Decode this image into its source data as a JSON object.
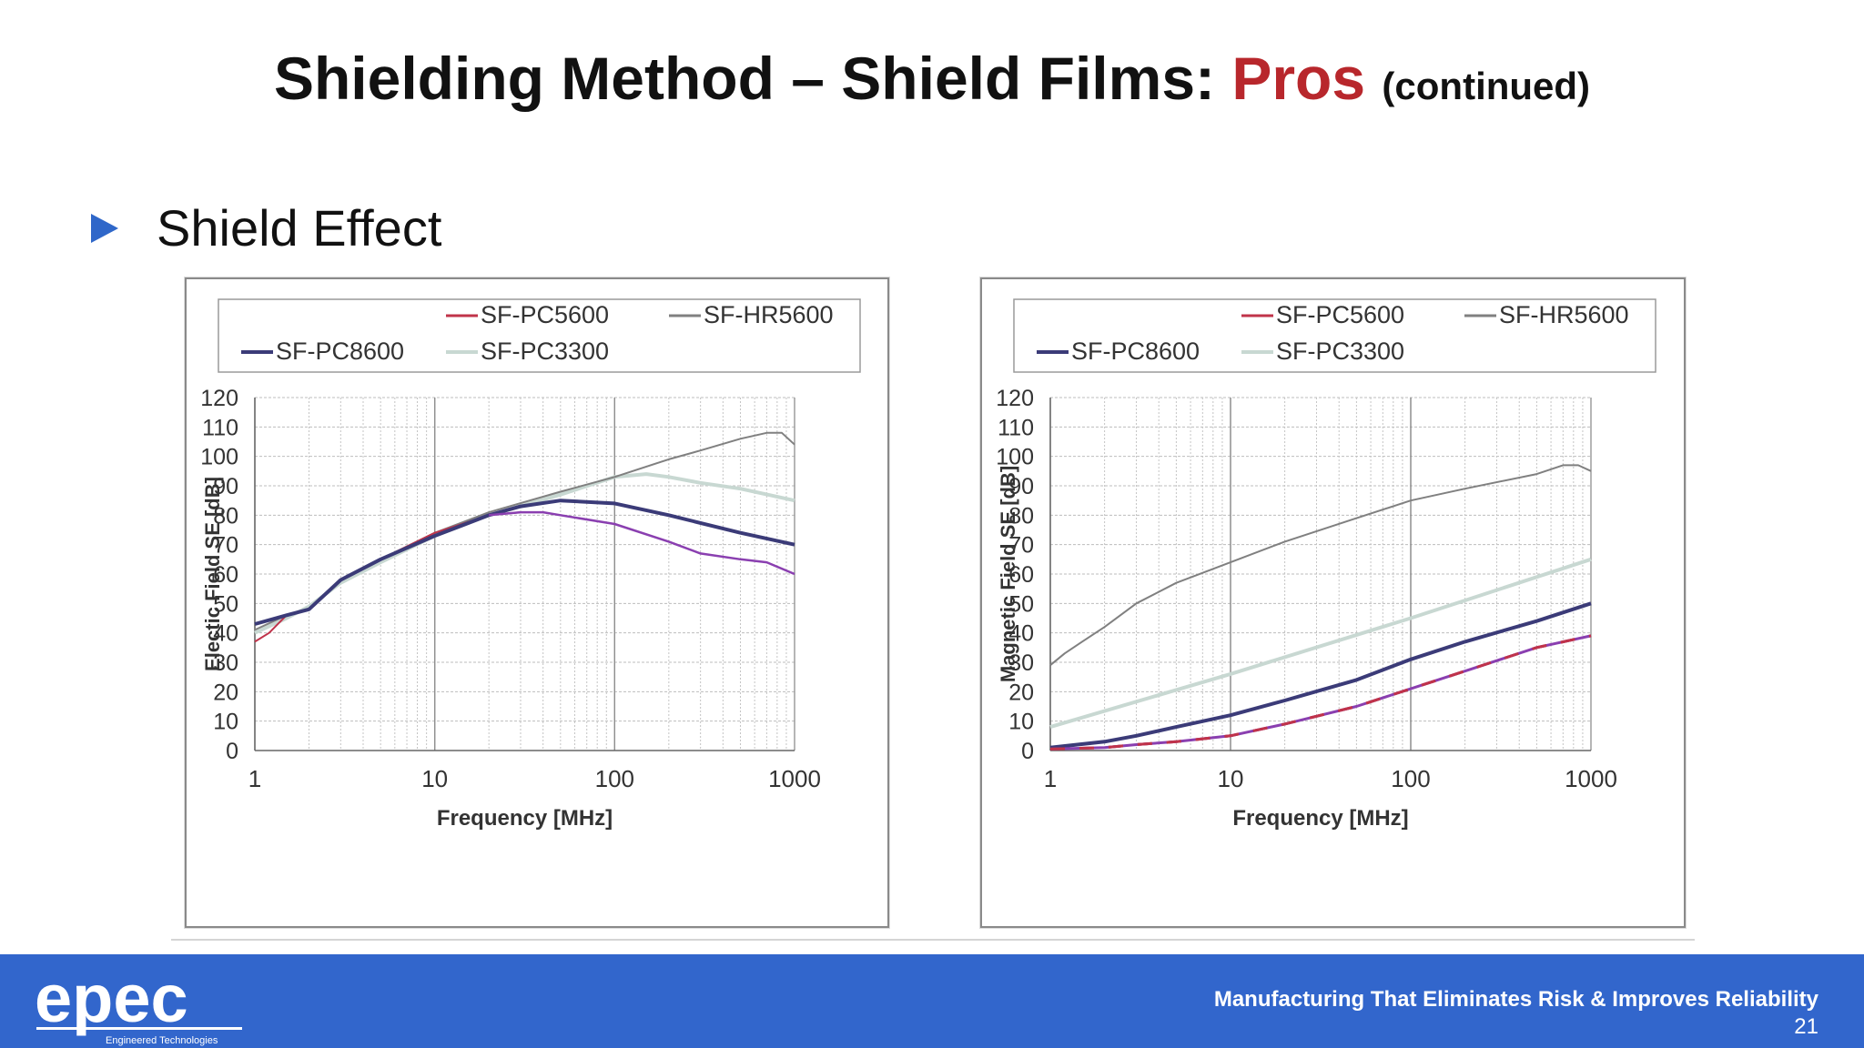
{
  "slide": {
    "title_main": "Shielding Method – Shield Films: ",
    "title_highlight": "Pros",
    "title_suffix": "(continued)",
    "bullet": "Shield Effect"
  },
  "footer": {
    "logo_text": "epec",
    "logo_subtext": "Engineered Technologies",
    "tagline": "Manufacturing That Eliminates Risk & Improves Reliability",
    "page_number": "21"
  },
  "colors": {
    "accent_blue": "#3266cc",
    "title_red": "#b8272c",
    "series": {
      "SF-PC5600": "#c0334a",
      "SF-HR5600": "#808080",
      "SF-PC8600": "#3b3b78",
      "SF-PC3300": "#c8d8d2",
      "purple": "#8a3fb0"
    }
  },
  "chart_data": [
    {
      "type": "line",
      "xscale": "log",
      "xlim": [
        1,
        1000
      ],
      "ylim": [
        0,
        120
      ],
      "xticks": [
        "1",
        "10",
        "100",
        "1000"
      ],
      "yticks": [
        "0",
        "10",
        "20",
        "30",
        "40",
        "50",
        "60",
        "70",
        "80",
        "90",
        "100",
        "110",
        "120"
      ],
      "xlabel": "Frequency [MHz]",
      "ylabel": "Electic Field SE [dB]",
      "grid": true,
      "legend": "top",
      "legend_entries": [
        "SF-PC5600",
        "SF-HR5600",
        "SF-PC8600",
        "SF-PC3300"
      ],
      "series": [
        {
          "name": "SF-PC3300",
          "x": [
            1,
            1.5,
            2,
            3,
            5,
            10,
            20,
            50,
            100,
            150,
            200,
            300,
            500,
            1000
          ],
          "y": [
            40,
            45,
            49,
            57,
            64,
            73,
            80,
            87,
            93,
            94,
            93,
            91,
            89,
            85
          ]
        },
        {
          "name": "SF-HR5600",
          "x": [
            1,
            1.5,
            2,
            3,
            5,
            10,
            20,
            50,
            100,
            200,
            300,
            500,
            700,
            850,
            1000
          ],
          "y": [
            41,
            46,
            48,
            58,
            65,
            74,
            81,
            88,
            93,
            99,
            102,
            106,
            108,
            108,
            104
          ]
        },
        {
          "name": "SF-PC5600",
          "x": [
            1,
            1.2,
            1.5,
            2,
            3,
            5,
            10,
            20,
            30
          ],
          "y": [
            37,
            40,
            46,
            48,
            58,
            65,
            74,
            80,
            81
          ]
        },
        {
          "name": "SF-PC8600",
          "x": [
            1,
            1.5,
            2,
            3,
            5,
            10,
            20,
            30,
            50,
            100,
            200,
            500,
            1000
          ],
          "y": [
            43,
            46,
            48,
            58,
            65,
            73,
            80,
            83,
            85,
            84,
            80,
            74,
            70
          ]
        },
        {
          "name": "",
          "x": [
            20,
            30,
            40,
            50,
            100,
            200,
            300,
            500,
            700,
            1000
          ],
          "y": [
            80,
            81,
            81,
            80,
            77,
            71,
            67,
            65,
            64,
            60
          ]
        }
      ]
    },
    {
      "type": "line",
      "xscale": "log",
      "xlim": [
        1,
        1000
      ],
      "ylim": [
        0,
        120
      ],
      "xticks": [
        "1",
        "10",
        "100",
        "1000"
      ],
      "yticks": [
        "0",
        "10",
        "20",
        "30",
        "40",
        "50",
        "60",
        "70",
        "80",
        "90",
        "100",
        "110",
        "120"
      ],
      "xlabel": "Frequency [MHz]",
      "ylabel": "Magnetic Field SE [dB]",
      "grid": true,
      "legend": "top",
      "legend_entries": [
        "SF-PC5600",
        "SF-HR5600",
        "SF-PC8600",
        "SF-PC3300"
      ],
      "series": [
        {
          "name": "SF-PC3300",
          "x": [
            1,
            10,
            100,
            1000
          ],
          "y": [
            8,
            26,
            45,
            65
          ]
        },
        {
          "name": "SF-HR5600",
          "x": [
            1,
            1.2,
            1.5,
            2,
            3,
            5,
            10,
            20,
            50,
            100,
            200,
            500,
            700,
            850,
            1000
          ],
          "y": [
            29,
            33,
            37,
            42,
            50,
            57,
            64,
            71,
            79,
            85,
            89,
            94,
            97,
            97,
            95
          ]
        },
        {
          "name": "SF-PC8600",
          "x": [
            1,
            2,
            3,
            5,
            10,
            20,
            50,
            100,
            200,
            500,
            1000
          ],
          "y": [
            1,
            3,
            5,
            8,
            12,
            17,
            24,
            31,
            37,
            44,
            50
          ]
        },
        {
          "name": "SF-PC5600",
          "x": [
            1,
            2,
            3,
            5,
            10,
            20,
            50,
            100,
            200,
            500,
            1000
          ],
          "y": [
            0.5,
            1,
            2,
            3,
            5,
            9,
            15,
            21,
            27,
            35,
            39
          ]
        },
        {
          "name": "",
          "x": [
            1,
            2,
            3,
            5,
            10,
            20,
            50,
            100,
            200,
            500,
            1000
          ],
          "y": [
            0.5,
            1,
            2,
            3,
            5,
            9,
            15,
            21,
            27,
            35,
            39
          ]
        }
      ]
    }
  ]
}
